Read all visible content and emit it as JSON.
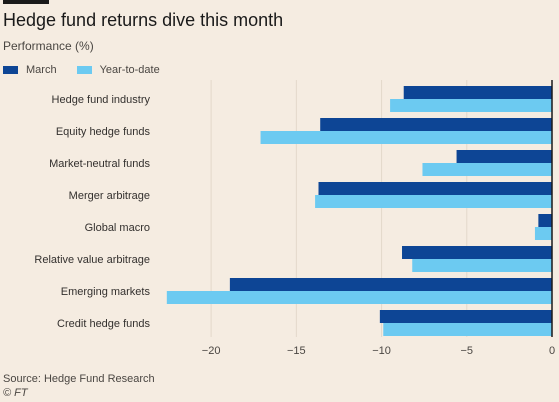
{
  "chart_data": {
    "type": "bar",
    "orientation": "horizontal",
    "title": "Hedge fund returns dive this month",
    "subtitle": "Performance (%)",
    "categories": [
      "Hedge fund industry",
      "Equity hedge funds",
      "Market-neutral funds",
      "Merger arbitrage",
      "Global macro",
      "Relative value arbitrage",
      "Emerging markets",
      "Credit hedge funds"
    ],
    "series": [
      {
        "name": "March",
        "color": "#0d4595",
        "values": [
          -8.7,
          -13.6,
          -5.6,
          -13.7,
          -0.8,
          -8.8,
          -18.9,
          -10.1
        ]
      },
      {
        "name": "Year-to-date",
        "color": "#6ccaf1",
        "values": [
          -9.5,
          -17.1,
          -7.6,
          -13.9,
          -1.0,
          -8.2,
          -22.6,
          -9.9
        ]
      }
    ],
    "xlim": [
      -23,
      0
    ],
    "xticks": [
      -20,
      -15,
      -10,
      -5,
      0
    ],
    "grid": true,
    "legend_position": "top-left"
  },
  "source": "Source: Hedge Fund Research",
  "credit": "© FT"
}
